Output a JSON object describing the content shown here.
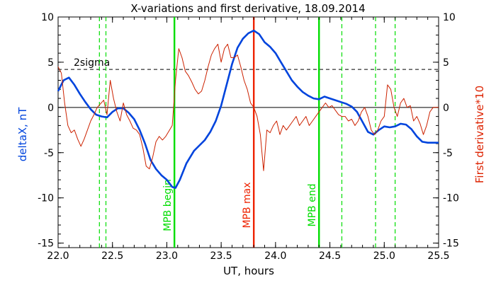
{
  "chart_data": {
    "type": "line",
    "title": "X-variations and first derivative, 18.09.2014",
    "xlabel": "UT, hours",
    "ylabel_left": "deltaX, nT",
    "ylabel_right": "First derivative*10",
    "xlim": [
      22.0,
      25.5
    ],
    "ylim": [
      -15.5,
      10.0
    ],
    "x_ticks": [
      22.0,
      22.5,
      23.0,
      23.5,
      24.0,
      24.5,
      25.0,
      25.5
    ],
    "x_tick_labels": [
      "22.0",
      "22.5",
      "23.0",
      "23.5",
      "24.0",
      "24.5",
      "25.0",
      "25.5"
    ],
    "y_ticks": [
      -15,
      -10,
      -5,
      0,
      5,
      10
    ],
    "y_tick_labels": [
      "-15",
      "-10",
      "-5",
      "0",
      "5",
      "10"
    ],
    "colors": {
      "deltaX": "#0044dd",
      "derivative": "#cc2200",
      "mpb_phase": "#00dd00",
      "mpb_max": "#ee2200",
      "axis_left": "#0044dd",
      "axis_right": "#dd2200"
    },
    "reference_lines": [
      {
        "y": 0,
        "style": "solid",
        "color": "#000000"
      },
      {
        "y": 4.2,
        "style": "dashed",
        "color": "#000000",
        "label": "2sigma"
      }
    ],
    "vertical_lines": [
      {
        "x": 22.38,
        "style": "dashed",
        "color": "#00dd00"
      },
      {
        "x": 22.44,
        "style": "dashed",
        "color": "#00dd00"
      },
      {
        "x": 23.07,
        "style": "solid",
        "color": "#00dd00",
        "label": "MPB begin"
      },
      {
        "x": 23.8,
        "style": "solid",
        "color": "#ee2200",
        "label": "MPB max"
      },
      {
        "x": 24.4,
        "style": "solid",
        "color": "#00dd00",
        "label": "MPB end"
      },
      {
        "x": 24.61,
        "style": "dashed",
        "color": "#00dd00"
      },
      {
        "x": 24.92,
        "style": "dashed",
        "color": "#00dd00"
      },
      {
        "x": 25.1,
        "style": "dashed",
        "color": "#00dd00"
      }
    ],
    "series": [
      {
        "key": "deltaX",
        "x": [
          22.0,
          22.05,
          22.1,
          22.15,
          22.2,
          22.25,
          22.3,
          22.35,
          22.4,
          22.45,
          22.5,
          22.55,
          22.6,
          22.65,
          22.7,
          22.75,
          22.8,
          22.85,
          22.9,
          22.95,
          23.0,
          23.05,
          23.08,
          23.12,
          23.18,
          23.25,
          23.3,
          23.35,
          23.4,
          23.45,
          23.5,
          23.55,
          23.6,
          23.65,
          23.7,
          23.75,
          23.8,
          23.85,
          23.9,
          23.95,
          24.0,
          24.05,
          24.1,
          24.15,
          24.2,
          24.25,
          24.3,
          24.35,
          24.4,
          24.45,
          24.5,
          24.55,
          24.6,
          24.65,
          24.7,
          24.75,
          24.8,
          24.85,
          24.9,
          24.95,
          25.0,
          25.05,
          25.1,
          25.15,
          25.2,
          25.25,
          25.3,
          25.35,
          25.4,
          25.45,
          25.5
        ],
        "values": [
          1.8,
          3.0,
          3.3,
          2.5,
          1.5,
          0.6,
          -0.2,
          -0.8,
          -1.0,
          -1.1,
          -0.5,
          -0.1,
          -0.1,
          -0.6,
          -1.3,
          -2.5,
          -4.0,
          -5.8,
          -6.8,
          -7.5,
          -8.0,
          -8.8,
          -8.9,
          -8.0,
          -6.2,
          -4.8,
          -4.2,
          -3.6,
          -2.7,
          -1.5,
          0.2,
          2.5,
          4.8,
          6.6,
          7.6,
          8.2,
          8.5,
          8.1,
          7.2,
          6.7,
          6.0,
          5.0,
          4.0,
          3.0,
          2.3,
          1.7,
          1.3,
          1.0,
          0.9,
          1.2,
          1.0,
          0.8,
          0.6,
          0.4,
          0.1,
          -0.5,
          -1.6,
          -2.7,
          -3.0,
          -2.5,
          -2.1,
          -2.2,
          -2.1,
          -1.8,
          -1.9,
          -2.4,
          -3.2,
          -3.8,
          -3.9,
          -3.9,
          -3.9
        ]
      },
      {
        "key": "derivative",
        "x": [
          22.0,
          22.03,
          22.06,
          22.09,
          22.12,
          22.15,
          22.18,
          22.21,
          22.24,
          22.27,
          22.3,
          22.33,
          22.36,
          22.39,
          22.42,
          22.45,
          22.48,
          22.51,
          22.54,
          22.57,
          22.6,
          22.63,
          22.66,
          22.69,
          22.72,
          22.75,
          22.78,
          22.81,
          22.84,
          22.87,
          22.9,
          22.93,
          22.96,
          22.99,
          23.02,
          23.05,
          23.08,
          23.11,
          23.14,
          23.17,
          23.2,
          23.23,
          23.26,
          23.29,
          23.32,
          23.35,
          23.38,
          23.41,
          23.44,
          23.47,
          23.5,
          23.53,
          23.56,
          23.59,
          23.62,
          23.65,
          23.68,
          23.71,
          23.74,
          23.77,
          23.8,
          23.83,
          23.86,
          23.89,
          23.92,
          23.95,
          23.98,
          24.01,
          24.04,
          24.07,
          24.1,
          24.13,
          24.16,
          24.19,
          24.22,
          24.25,
          24.28,
          24.31,
          24.34,
          24.37,
          24.4,
          24.43,
          24.46,
          24.49,
          24.52,
          24.55,
          24.58,
          24.61,
          24.64,
          24.67,
          24.7,
          24.73,
          24.76,
          24.79,
          24.82,
          24.85,
          24.88,
          24.91,
          24.94,
          24.97,
          25.0,
          25.03,
          25.06,
          25.09,
          25.12,
          25.15,
          25.18,
          25.21,
          25.24,
          25.27,
          25.3,
          25.33,
          25.36,
          25.39,
          25.42,
          25.45,
          25.48,
          25.5
        ],
        "values": [
          4.5,
          3.8,
          0.5,
          -2.0,
          -2.8,
          -2.5,
          -3.5,
          -4.3,
          -3.5,
          -2.5,
          -1.5,
          -0.8,
          0.0,
          0.4,
          0.8,
          -0.8,
          3.0,
          1.0,
          -0.5,
          -1.5,
          0.5,
          -0.8,
          -1.5,
          -2.3,
          -2.5,
          -3.0,
          -4.5,
          -6.5,
          -6.8,
          -5.5,
          -3.8,
          -3.2,
          -3.6,
          -3.2,
          -2.6,
          -2.0,
          3.0,
          6.5,
          5.5,
          4.0,
          3.5,
          2.8,
          2.0,
          1.5,
          1.8,
          3.0,
          4.5,
          5.8,
          6.5,
          7.0,
          5.0,
          6.5,
          7.0,
          5.5,
          5.5,
          5.8,
          4.5,
          3.0,
          2.0,
          0.5,
          0.0,
          -1.0,
          -3.0,
          -7.0,
          -2.5,
          -2.8,
          -2.0,
          -1.5,
          -3.0,
          -2.0,
          -2.5,
          -2.0,
          -1.5,
          -1.0,
          -2.0,
          -1.5,
          -1.0,
          -2.0,
          -1.5,
          -1.0,
          -0.5,
          0.0,
          0.5,
          0.0,
          0.2,
          -0.3,
          -0.8,
          -1.0,
          -1.0,
          -1.5,
          -1.3,
          -2.0,
          -1.5,
          -0.5,
          0.0,
          -1.0,
          -2.5,
          -3.0,
          -2.5,
          -1.5,
          -1.0,
          2.5,
          2.0,
          0.0,
          -1.0,
          0.5,
          1.0,
          0.0,
          0.2,
          -1.5,
          -1.0,
          -1.8,
          -3.0,
          -2.0,
          -0.5,
          0.0,
          0.0,
          0.0
        ]
      }
    ]
  }
}
